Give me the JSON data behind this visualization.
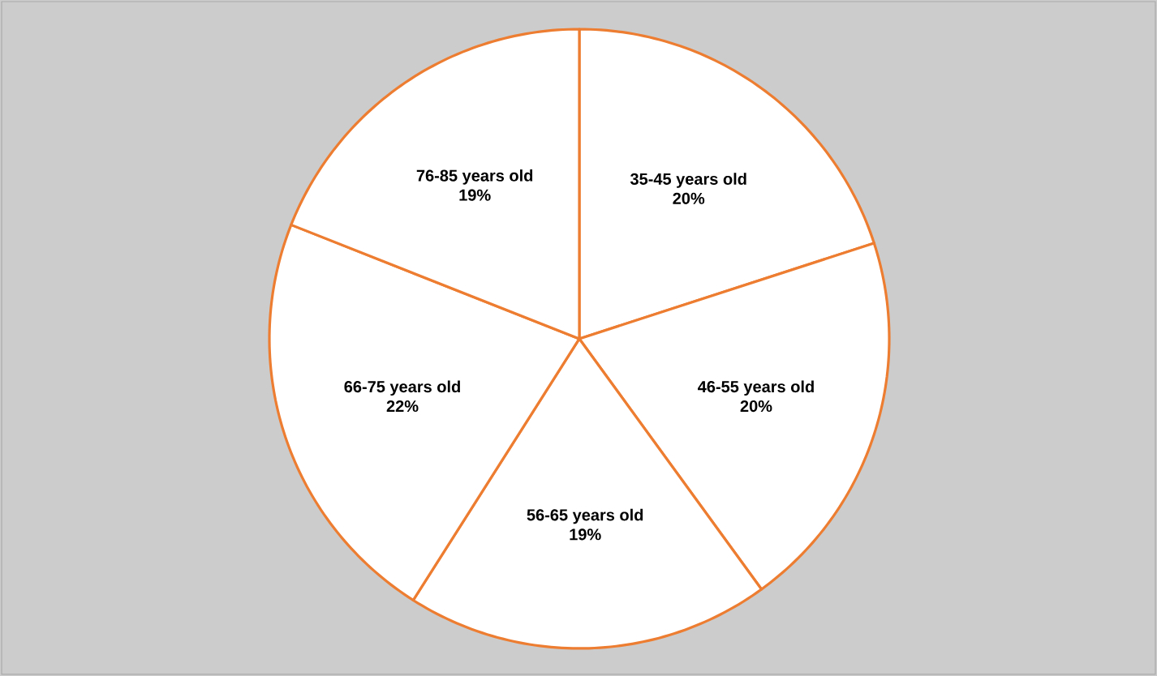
{
  "chart_data": {
    "type": "pie",
    "categories": [
      "35-45 years old",
      "46-55 years old",
      "56-65 years old",
      "66-75 years old",
      "76-85 years old"
    ],
    "values": [
      20,
      20,
      19,
      22,
      19
    ],
    "colors": [
      "#ffffff",
      "#ffffff",
      "#ffffff",
      "#ffffff",
      "#ffffff"
    ],
    "value_labels": [
      "20%",
      "20%",
      "19%",
      "22%",
      "19%"
    ]
  }
}
